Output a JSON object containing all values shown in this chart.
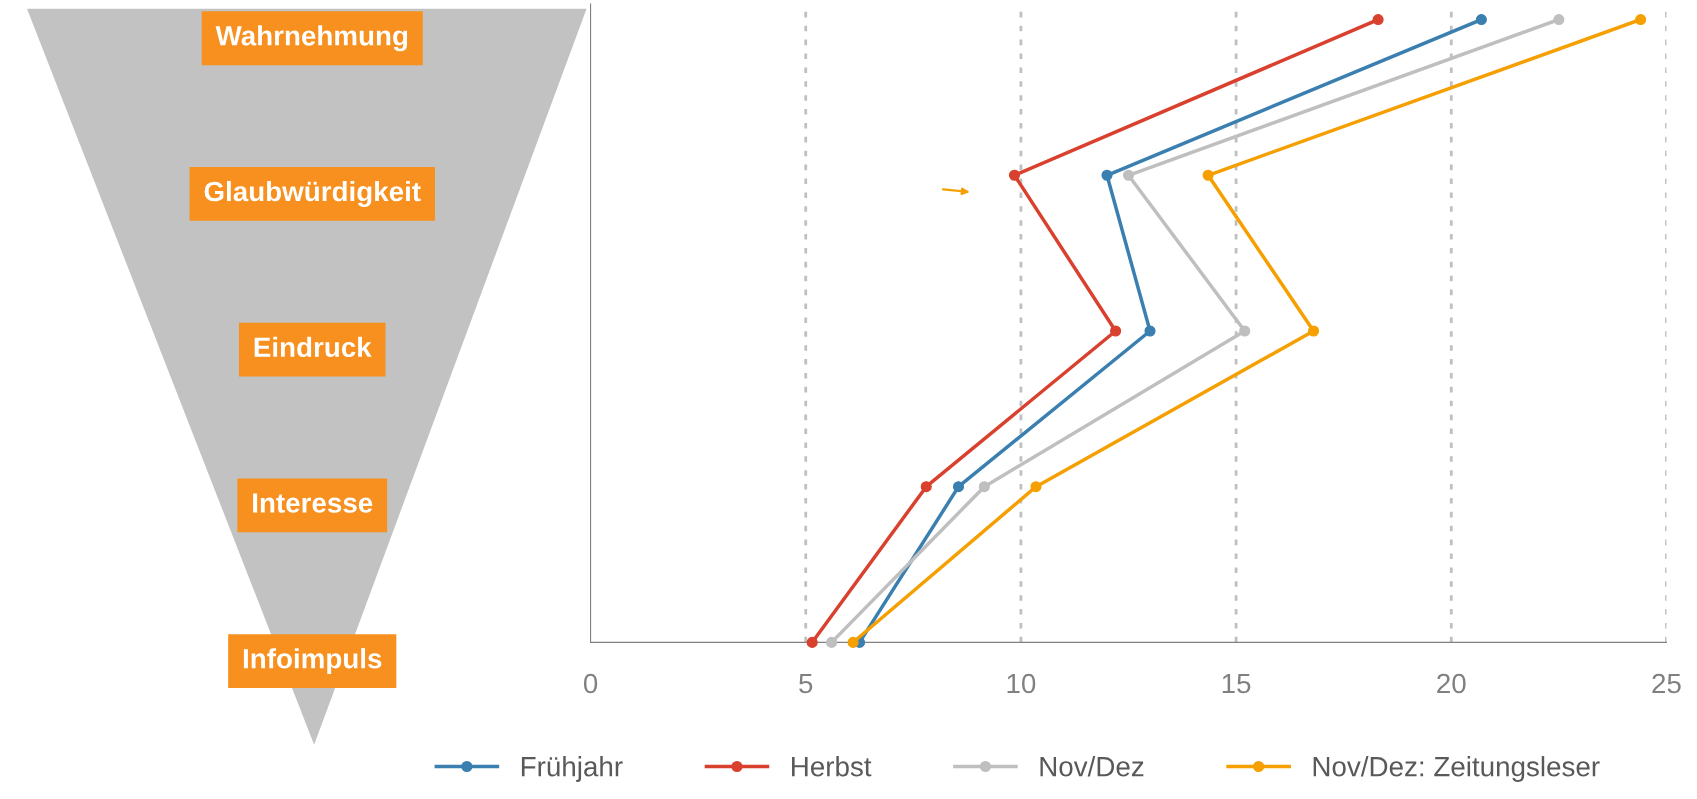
{
  "chart_data": {
    "type": "line",
    "orientation": "horizontal",
    "categories": [
      "Wahrnehmung",
      "Glaubwürdigkeit",
      "Eindruck",
      "Interesse",
      "Infoimpuls"
    ],
    "series": [
      {
        "name": "Frühjahr",
        "color": "#3a7fb0",
        "values": [
          20.7,
          12.0,
          13.0,
          8.55,
          6.25
        ]
      },
      {
        "name": "Herbst",
        "color": "#d9412e",
        "values": [
          18.3,
          9.85,
          12.2,
          7.8,
          5.15
        ]
      },
      {
        "name": "Nov/Dez",
        "color": "#bfbfbf",
        "values": [
          22.5,
          12.5,
          15.2,
          9.15,
          5.6
        ]
      },
      {
        "name": "Nov/Dez: Zeitungsleser",
        "color": "#f59f00",
        "values": [
          24.4,
          14.35,
          16.8,
          10.35,
          6.1
        ]
      }
    ],
    "xlim": [
      0,
      25
    ],
    "xticks": [
      0,
      5,
      10,
      15,
      20,
      25
    ],
    "grid": "x",
    "legend": "bottom",
    "marker": "circle",
    "line_style": "solid"
  }
}
